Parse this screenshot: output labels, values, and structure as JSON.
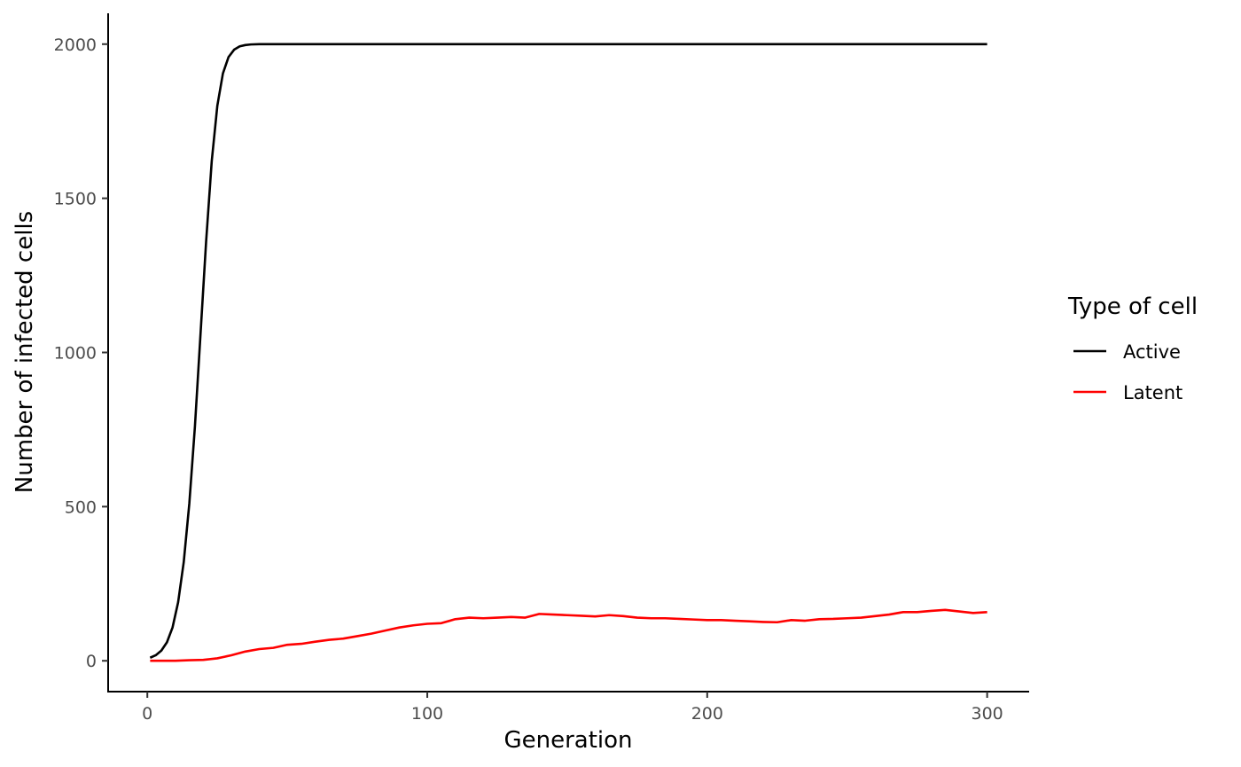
{
  "chart_data": {
    "type": "line",
    "title": "",
    "xlabel": "Generation",
    "ylabel": "Number of infected cells",
    "xlim": [
      -14,
      315
    ],
    "ylim": [
      -100,
      2100
    ],
    "x_ticks": [
      0,
      100,
      200,
      300
    ],
    "y_ticks": [
      0,
      500,
      1000,
      1500,
      2000
    ],
    "grid": false,
    "legend": {
      "title": "Type of cell",
      "position": "right"
    },
    "series": [
      {
        "name": "Active",
        "color": "#000000",
        "x": [
          1,
          3,
          5,
          7,
          9,
          11,
          13,
          15,
          17,
          19,
          21,
          23,
          25,
          27,
          29,
          31,
          33,
          35,
          37,
          40,
          45,
          50,
          60,
          80,
          100,
          150,
          200,
          250,
          300
        ],
        "y": [
          10,
          18,
          33,
          60,
          108,
          190,
          320,
          510,
          760,
          1060,
          1360,
          1620,
          1800,
          1905,
          1958,
          1982,
          1993,
          1997,
          1999,
          2000,
          2000,
          2000,
          2000,
          2000,
          2000,
          2000,
          2000,
          2000,
          2000
        ]
      },
      {
        "name": "Latent",
        "color": "#ff0000",
        "x": [
          1,
          5,
          10,
          15,
          20,
          25,
          30,
          35,
          40,
          45,
          50,
          55,
          60,
          65,
          70,
          75,
          80,
          85,
          90,
          95,
          100,
          105,
          110,
          115,
          120,
          125,
          130,
          135,
          140,
          145,
          150,
          155,
          160,
          165,
          170,
          175,
          180,
          185,
          190,
          195,
          200,
          205,
          210,
          215,
          220,
          225,
          230,
          235,
          240,
          245,
          250,
          255,
          260,
          265,
          270,
          275,
          280,
          285,
          290,
          295,
          300
        ],
        "y": [
          0,
          0,
          0,
          2,
          3,
          8,
          18,
          30,
          38,
          42,
          52,
          55,
          62,
          68,
          72,
          80,
          88,
          98,
          108,
          115,
          120,
          122,
          135,
          140,
          138,
          140,
          142,
          140,
          152,
          150,
          148,
          146,
          144,
          148,
          145,
          140,
          138,
          138,
          136,
          134,
          132,
          132,
          130,
          128,
          126,
          125,
          132,
          130,
          135,
          136,
          138,
          140,
          145,
          150,
          158,
          158,
          162,
          165,
          160,
          155,
          158
        ]
      }
    ]
  }
}
